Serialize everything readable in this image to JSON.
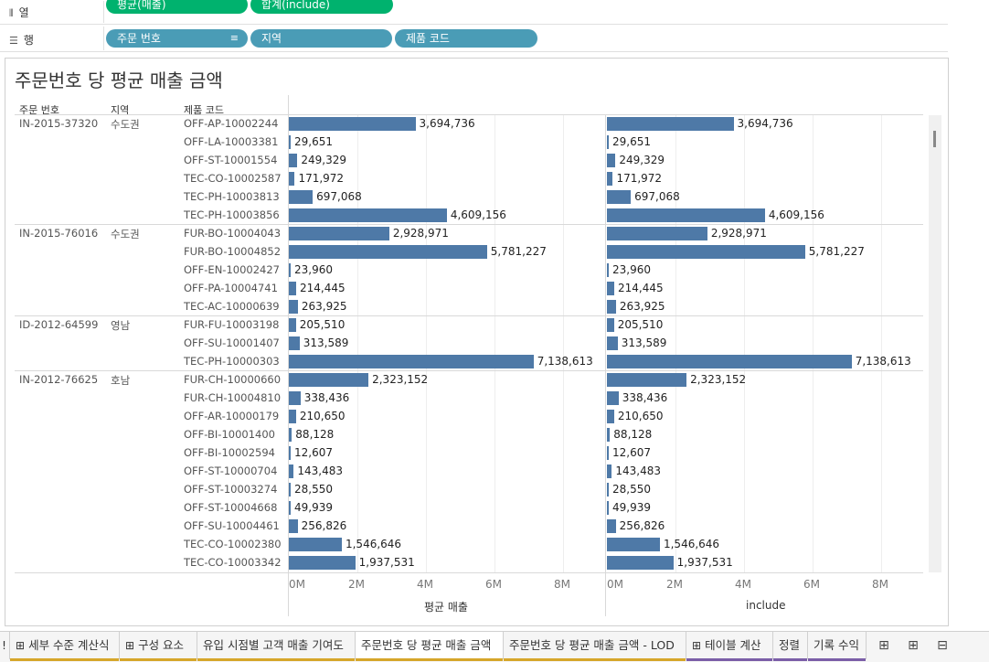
{
  "shelves": {
    "columns": {
      "label": "열",
      "pills": [
        "평균(매출)",
        "합계(include)"
      ]
    },
    "rows": {
      "label": "행",
      "pills": [
        "주문 번호",
        "지역",
        "제품 코드"
      ]
    }
  },
  "view": {
    "title": "주문번호 당 평균 매출 금액",
    "headers": [
      "주문 번호",
      "지역",
      "제품 코드"
    ],
    "axis1_title": "평균 매출",
    "axis2_title": "include",
    "ticks": [
      "0M",
      "2M",
      "4M",
      "6M",
      "8M"
    ]
  },
  "chart_data": {
    "type": "bar",
    "title": "주문번호 당 평균 매출 금액",
    "xlim": [
      0,
      9000000
    ],
    "series": [
      {
        "name": "평균 매출"
      },
      {
        "name": "include"
      }
    ],
    "groups": [
      {
        "order": "IN-2015-37320",
        "region": "수도권",
        "products": [
          {
            "code": "OFF-AP-10002244",
            "value": 3694736,
            "label": "3,694,736"
          },
          {
            "code": "OFF-LA-10003381",
            "value": 29651,
            "label": "29,651"
          },
          {
            "code": "OFF-ST-10001554",
            "value": 249329,
            "label": "249,329"
          },
          {
            "code": "TEC-CO-10002587",
            "value": 171972,
            "label": "171,972"
          },
          {
            "code": "TEC-PH-10003813",
            "value": 697068,
            "label": "697,068"
          },
          {
            "code": "TEC-PH-10003856",
            "value": 4609156,
            "label": "4,609,156"
          }
        ]
      },
      {
        "order": "IN-2015-76016",
        "region": "수도권",
        "products": [
          {
            "code": "FUR-BO-10004043",
            "value": 2928971,
            "label": "2,928,971"
          },
          {
            "code": "FUR-BO-10004852",
            "value": 5781227,
            "label": "5,781,227"
          },
          {
            "code": "OFF-EN-10002427",
            "value": 23960,
            "label": "23,960"
          },
          {
            "code": "OFF-PA-10004741",
            "value": 214445,
            "label": "214,445"
          },
          {
            "code": "TEC-AC-10000639",
            "value": 263925,
            "label": "263,925"
          }
        ]
      },
      {
        "order": "ID-2012-64599",
        "region": "영남",
        "products": [
          {
            "code": "FUR-FU-10003198",
            "value": 205510,
            "label": "205,510"
          },
          {
            "code": "OFF-SU-10001407",
            "value": 313589,
            "label": "313,589"
          },
          {
            "code": "TEC-PH-10000303",
            "value": 7138613,
            "label": "7,138,613"
          }
        ]
      },
      {
        "order": "IN-2012-76625",
        "region": "호남",
        "products": [
          {
            "code": "FUR-CH-10000660",
            "value": 2323152,
            "label": "2,323,152"
          },
          {
            "code": "FUR-CH-10004810",
            "value": 338436,
            "label": "338,436"
          },
          {
            "code": "OFF-AR-10000179",
            "value": 210650,
            "label": "210,650"
          },
          {
            "code": "OFF-BI-10001400",
            "value": 88128,
            "label": "88,128"
          },
          {
            "code": "OFF-BI-10002594",
            "value": 12607,
            "label": "12,607"
          },
          {
            "code": "OFF-ST-10000704",
            "value": 143483,
            "label": "143,483"
          },
          {
            "code": "OFF-ST-10003274",
            "value": 28550,
            "label": "28,550"
          },
          {
            "code": "OFF-ST-10004668",
            "value": 49939,
            "label": "49,939"
          },
          {
            "code": "OFF-SU-10004461",
            "value": 256826,
            "label": "256,826"
          },
          {
            "code": "TEC-CO-10002380",
            "value": 1546646,
            "label": "1,546,646"
          },
          {
            "code": "TEC-CO-10003342",
            "value": 1937531,
            "label": "1,937,531"
          }
        ]
      }
    ]
  },
  "tabs": [
    {
      "label": "!",
      "icon": "sheet-icon"
    },
    {
      "label": "세부 수준 계산식",
      "icon": "sheet-icon"
    },
    {
      "label": "구성 요소",
      "icon": "sheet-icon"
    },
    {
      "label": "유입 시점별 고객 매출 기여도",
      "icon": ""
    },
    {
      "label": "주문번호 당 평균 매출 금액",
      "icon": "",
      "active": true
    },
    {
      "label": "주문번호 당 평균 매출 금액 - LOD",
      "icon": ""
    },
    {
      "label": "테이블 계산",
      "icon": "sheet-icon"
    },
    {
      "label": "정렬",
      "icon": ""
    },
    {
      "label": "기록 수익",
      "icon": ""
    }
  ],
  "colors": {
    "bar": "#4e79a7",
    "green_pill": "#00b26e",
    "blue_pill": "#4a9cb6"
  }
}
